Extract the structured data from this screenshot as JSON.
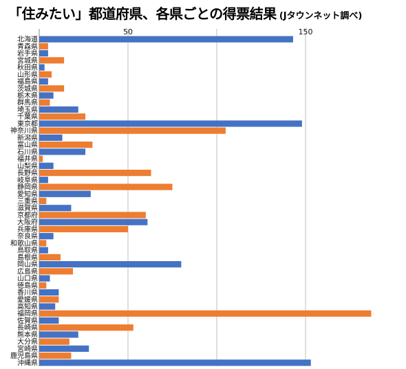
{
  "title": "「住みたい」都道府県、各県ごとの得票結果",
  "source": "(Jタウンネット調べ)",
  "colors": {
    "blue": "#4472C4",
    "orange": "#ED7D31",
    "grid": "#BFBFBF"
  },
  "chart_data": {
    "type": "bar",
    "orientation": "horizontal",
    "title": "「住みたい」都道府県、各県ごとの得票結果",
    "source": "(Jタウンネット調べ)",
    "xlim": [
      0,
      175
    ],
    "xticks": [
      50,
      100,
      150
    ],
    "xtick_labels": [
      "50",
      "",
      "150"
    ],
    "grid": true,
    "legend": "none",
    "categories": [
      "北海道",
      "青森県",
      "岩手県",
      "宮城県",
      "秋田県",
      "山形県",
      "福島県",
      "茨城県",
      "栃木県",
      "群馬県",
      "埼玉県",
      "千葉県",
      "東京都",
      "神奈川県",
      "新潟県",
      "富山県",
      "石川県",
      "福井県",
      "山梨県",
      "長野県",
      "岐阜県",
      "静岡県",
      "愛知県",
      "三重県",
      "滋賀県",
      "京都府",
      "大阪府",
      "兵庫県",
      "奈良県",
      "和歌山県",
      "鳥取県",
      "島根県",
      "岡山県",
      "広島県",
      "山口県",
      "徳島県",
      "香川県",
      "愛媛県",
      "高知県",
      "福岡県",
      "佐賀県",
      "長崎県",
      "熊本県",
      "大分県",
      "宮崎県",
      "鹿児島県",
      "沖縄県"
    ],
    "values": [
      143,
      5,
      5,
      14,
      3,
      7,
      5,
      14,
      8,
      6,
      22,
      26,
      148,
      105,
      13,
      30,
      26,
      2,
      8,
      63,
      5,
      75,
      29,
      4,
      18,
      60,
      61,
      50,
      8,
      4,
      5,
      12,
      80,
      19,
      6,
      4,
      11,
      11,
      9,
      187,
      11,
      53,
      22,
      17,
      28,
      18,
      153
    ],
    "bar_colors": [
      "blue",
      "orange",
      "blue",
      "orange",
      "blue",
      "orange",
      "blue",
      "orange",
      "blue",
      "orange",
      "blue",
      "orange",
      "blue",
      "orange",
      "blue",
      "orange",
      "blue",
      "orange",
      "blue",
      "orange",
      "blue",
      "orange",
      "blue",
      "orange",
      "blue",
      "orange",
      "blue",
      "orange",
      "blue",
      "orange",
      "blue",
      "orange",
      "blue",
      "orange",
      "blue",
      "orange",
      "blue",
      "orange",
      "blue",
      "orange",
      "blue",
      "orange",
      "blue",
      "orange",
      "blue",
      "orange",
      "blue"
    ]
  }
}
